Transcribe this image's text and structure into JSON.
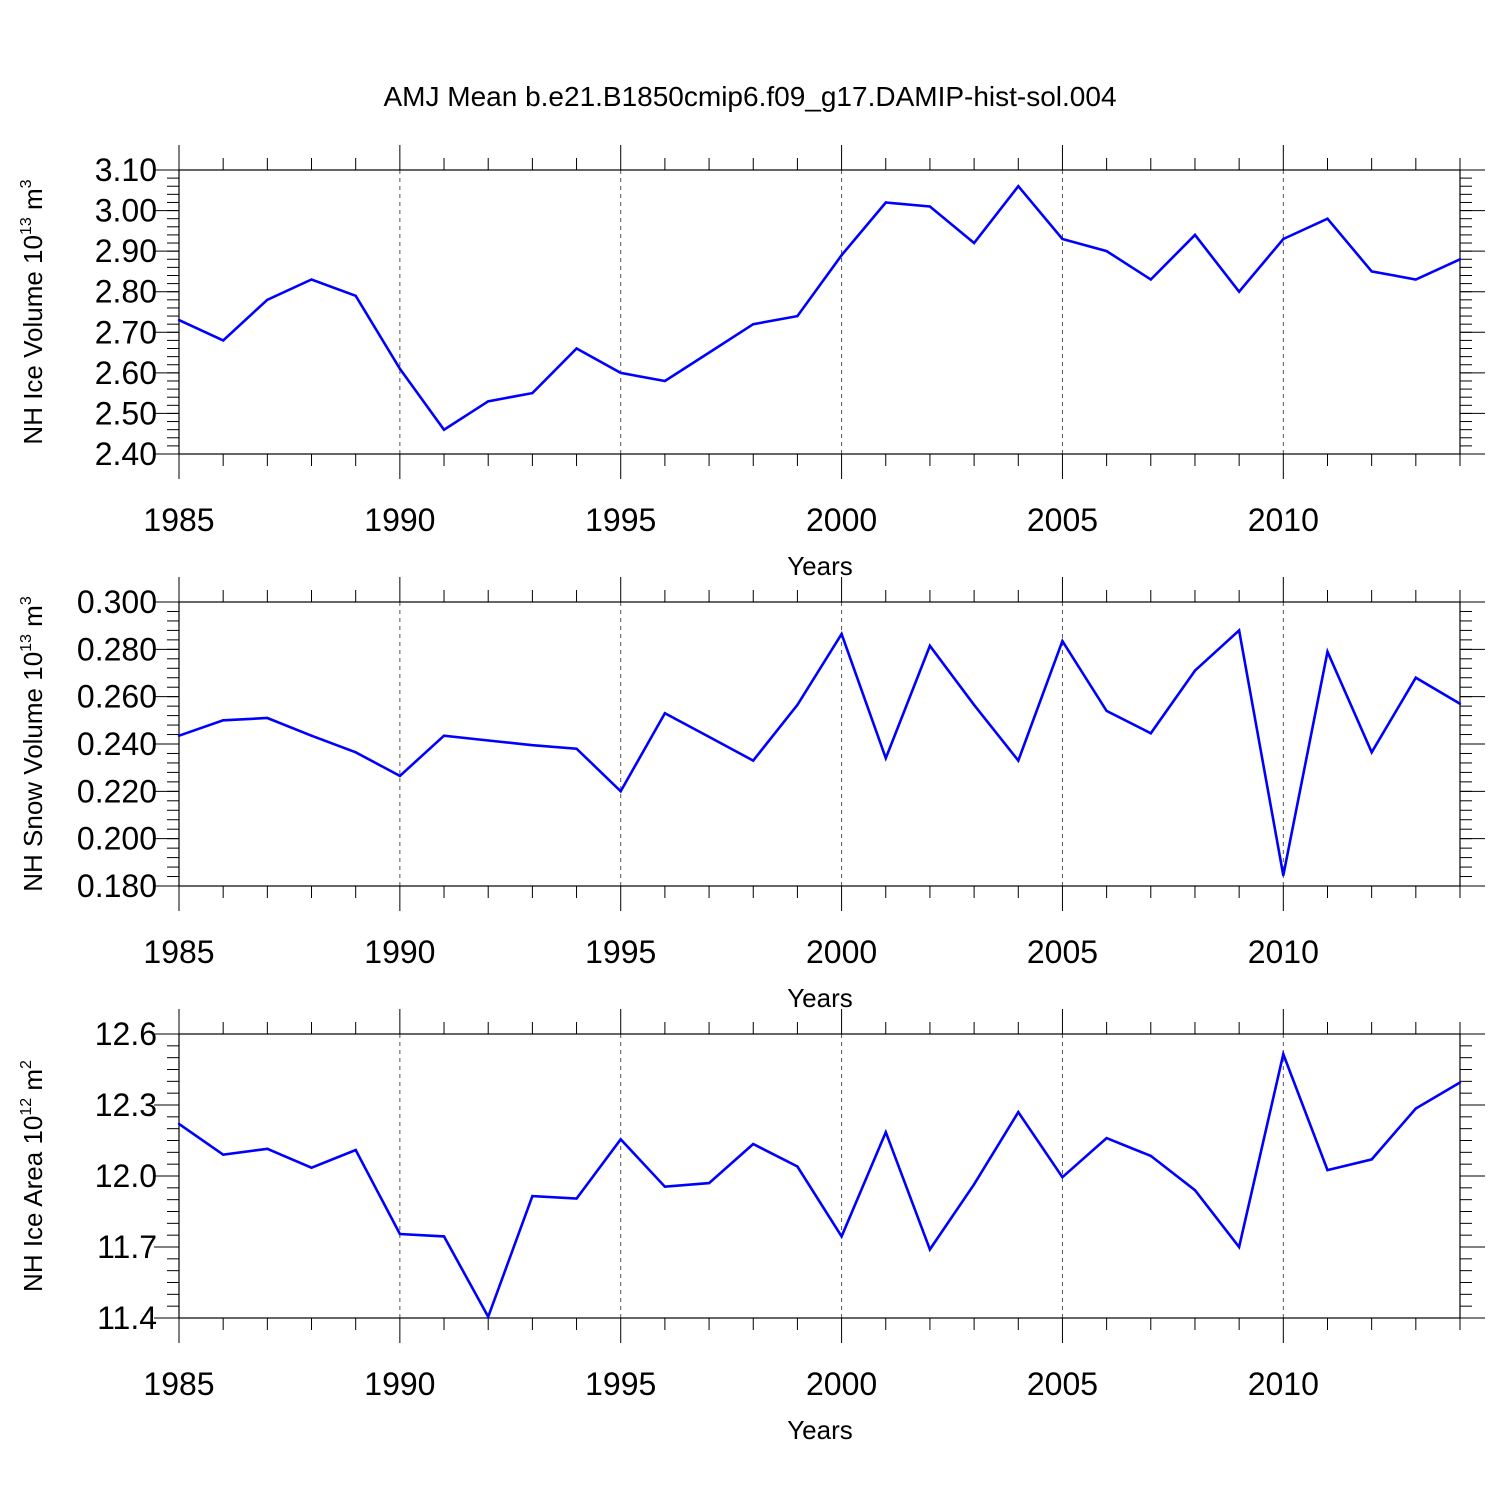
{
  "figure_title": "AMJ Mean b.e21.B1850cmip6.f09_g17.DAMIP-hist-sol.004",
  "line_color": "#0000ff",
  "chart_data": [
    {
      "type": "line",
      "title": "",
      "ylabel": "NH Ice Volume 10^13 m^3",
      "ylabel_parts": [
        "NH Ice Volume 10",
        "13",
        " m",
        "3"
      ],
      "xlabel": "Years",
      "xlim": [
        1985,
        2014
      ],
      "ylim": [
        2.4,
        3.1
      ],
      "x_ticks": [
        1985,
        1990,
        1995,
        2000,
        2005,
        2010
      ],
      "x_tick_labels": [
        "1985",
        "1990",
        "1995",
        "2000",
        "2005",
        "2010"
      ],
      "y_ticks": [
        2.4,
        2.5,
        2.6,
        2.7,
        2.8,
        2.9,
        3.0,
        3.1
      ],
      "y_tick_labels": [
        "2.40",
        "2.50",
        "2.60",
        "2.70",
        "2.80",
        "2.90",
        "3.00",
        "3.10"
      ],
      "y_minor_step": 0.02,
      "grid": "vertical dashed at major x ticks",
      "series": [
        {
          "name": "NH Ice Volume",
          "x": [
            1985,
            1986,
            1987,
            1988,
            1989,
            1990,
            1991,
            1992,
            1993,
            1994,
            1995,
            1996,
            1997,
            1998,
            1999,
            2000,
            2001,
            2002,
            2003,
            2004,
            2005,
            2006,
            2007,
            2008,
            2009,
            2010,
            2011,
            2012,
            2013,
            2014
          ],
          "values": [
            2.73,
            2.68,
            2.78,
            2.83,
            2.79,
            2.61,
            2.46,
            2.53,
            2.55,
            2.66,
            2.6,
            2.58,
            2.65,
            2.72,
            2.74,
            2.89,
            3.02,
            3.01,
            2.92,
            3.06,
            2.93,
            2.9,
            2.83,
            2.94,
            2.8,
            2.93,
            2.98,
            2.85,
            2.83,
            2.88
          ]
        }
      ]
    },
    {
      "type": "line",
      "title": "",
      "ylabel": "NH Snow Volume 10^13 m^3",
      "ylabel_parts": [
        "NH Snow Volume 10",
        "13",
        " m",
        "3"
      ],
      "xlabel": "Years",
      "xlim": [
        1985,
        2014
      ],
      "ylim": [
        0.18,
        0.3
      ],
      "x_ticks": [
        1985,
        1990,
        1995,
        2000,
        2005,
        2010
      ],
      "x_tick_labels": [
        "1985",
        "1990",
        "1995",
        "2000",
        "2005",
        "2010"
      ],
      "y_ticks": [
        0.18,
        0.2,
        0.22,
        0.24,
        0.26,
        0.28,
        0.3
      ],
      "y_tick_labels": [
        "0.180",
        "0.200",
        "0.220",
        "0.240",
        "0.260",
        "0.280",
        "0.300"
      ],
      "y_minor_step": 0.004,
      "grid": "vertical dashed at major x ticks",
      "series": [
        {
          "name": "NH Snow Volume",
          "x": [
            1985,
            1986,
            1987,
            1988,
            1989,
            1990,
            1991,
            1992,
            1993,
            1994,
            1995,
            1996,
            1997,
            1998,
            1999,
            2000,
            2001,
            2002,
            2003,
            2004,
            2005,
            2006,
            2007,
            2008,
            2009,
            2010,
            2011,
            2012,
            2013,
            2014
          ],
          "values": [
            0.2435,
            0.25,
            0.251,
            0.2435,
            0.2365,
            0.2265,
            0.2435,
            0.2415,
            0.2395,
            0.238,
            0.22,
            0.253,
            0.243,
            0.233,
            0.2565,
            0.2865,
            0.234,
            0.2815,
            0.2565,
            0.233,
            0.2835,
            0.254,
            0.2445,
            0.271,
            0.288,
            0.1845,
            0.279,
            0.2365,
            0.268,
            0.257
          ]
        }
      ]
    },
    {
      "type": "line",
      "title": "",
      "ylabel": "NH Ice Area 10^12 m^2",
      "ylabel_parts": [
        "NH Ice Area 10",
        "12",
        " m",
        "2"
      ],
      "xlabel": "Years",
      "xlim": [
        1985,
        2014
      ],
      "ylim": [
        11.4,
        12.6
      ],
      "x_ticks": [
        1985,
        1990,
        1995,
        2000,
        2005,
        2010
      ],
      "x_tick_labels": [
        "1985",
        "1990",
        "1995",
        "2000",
        "2005",
        "2010"
      ],
      "y_ticks": [
        11.4,
        11.7,
        12.0,
        12.3,
        12.6
      ],
      "y_tick_labels": [
        "11.4",
        "11.7",
        "12.0",
        "12.3",
        "12.6"
      ],
      "y_minor_step": 0.05,
      "grid": "vertical dashed at major x ticks",
      "series": [
        {
          "name": "NH Ice Area",
          "x": [
            1985,
            1986,
            1987,
            1988,
            1989,
            1990,
            1991,
            1992,
            1993,
            1994,
            1995,
            1996,
            1997,
            1998,
            1999,
            2000,
            2001,
            2002,
            2003,
            2004,
            2005,
            2006,
            2007,
            2008,
            2009,
            2010,
            2011,
            2012,
            2013,
            2014
          ],
          "values": [
            12.22,
            12.09,
            12.115,
            12.035,
            12.11,
            11.755,
            11.745,
            11.405,
            11.915,
            11.905,
            12.155,
            11.955,
            11.97,
            12.135,
            12.04,
            11.745,
            12.185,
            11.69,
            11.965,
            12.27,
            11.995,
            12.16,
            12.085,
            11.94,
            11.7,
            12.515,
            12.025,
            12.07,
            12.285,
            12.395
          ]
        }
      ]
    }
  ]
}
